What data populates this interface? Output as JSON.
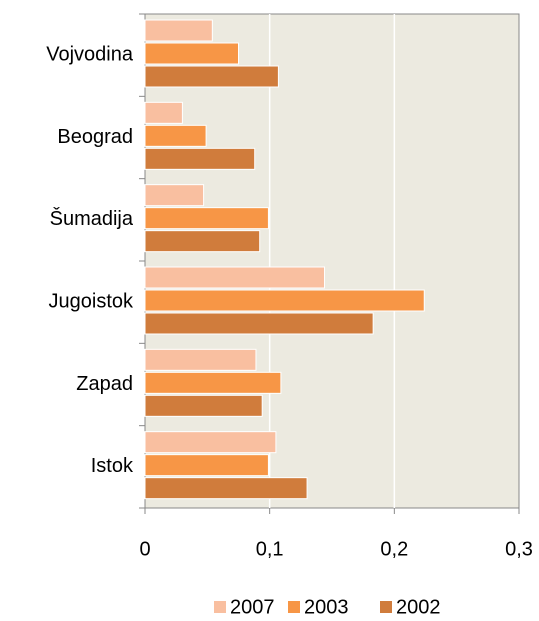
{
  "chart_data": {
    "type": "hbar",
    "categories": [
      "Vojvodina",
      "Beograd",
      "Šumadija",
      "Jugoistok",
      "Zapad",
      "Istok"
    ],
    "series": [
      {
        "name": "2007",
        "color": "#f9bfa0",
        "values": [
          0.054,
          0.03,
          0.047,
          0.144,
          0.089,
          0.105
        ]
      },
      {
        "name": "2003",
        "color": "#f79646",
        "values": [
          0.075,
          0.049,
          0.099,
          0.224,
          0.109,
          0.099
        ]
      },
      {
        "name": "2002",
        "color": "#d07c3c",
        "values": [
          0.107,
          0.088,
          0.092,
          0.183,
          0.094,
          0.13
        ]
      }
    ],
    "xlim": [
      0,
      0.3
    ],
    "xticks": [
      0,
      {
        "value": 0.1,
        "label": "0,1"
      },
      {
        "value": 0.2,
        "label": "0,2"
      },
      {
        "value": 0.3,
        "label": "0,3"
      }
    ],
    "grid": true,
    "legend": "bottom"
  }
}
